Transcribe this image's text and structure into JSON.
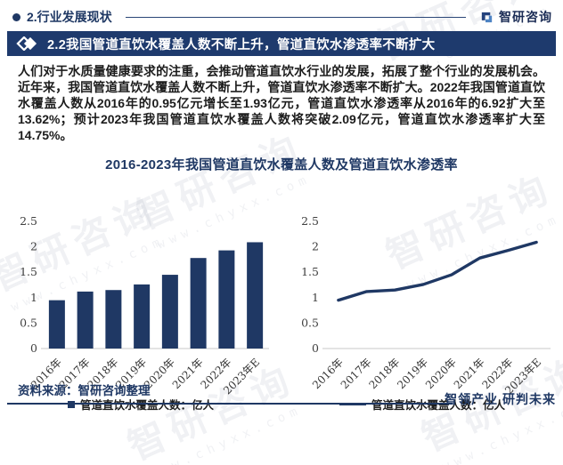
{
  "header": {
    "section": "2.行业发展现状",
    "brand": "智研咨询"
  },
  "banner": {
    "title": "2.2我国管道直饮水覆盖人数不断上升，管道直饮水渗透率不断扩大"
  },
  "body_text": "人们对于水质量健康要求的注重，会推动管道直饮水行业的发展，拓展了整个行业的发展机会。近年来，我国管道直饮水覆盖人数不断上升，管道直饮水渗透率不断扩大。2022年我国管道直饮水覆盖人数从2016年的0.95亿元增长至1.93亿元，管道直饮水渗透率从2016年的6.92扩大至13.62%；预计2023年我国管道直饮水覆盖人数将突破2.09亿元，管道直饮水渗透率扩大至14.75%。",
  "figure": {
    "title": "2016-2023年我国管道直饮水覆盖人数及管道直饮水渗透率"
  },
  "footer": {
    "source": "资料来源：智研咨询整理",
    "slogan": "智领产业 研判未来"
  },
  "watermark": {
    "brand": "智研咨询",
    "url": "www.chyxx.com"
  },
  "colors": {
    "navy": "#1f3864",
    "bar": "#1f3864",
    "line": "#1f3864",
    "baseline": "#c9c9c9",
    "tick_text": "#404040",
    "banner_bg": "#1e3a6d"
  },
  "chart_data": [
    {
      "type": "bar",
      "categories": [
        "2016年",
        "2017年",
        "2018年",
        "2019年",
        "2020年",
        "2021年",
        "2022年",
        "2023年E"
      ],
      "values": [
        0.95,
        1.12,
        1.15,
        1.26,
        1.45,
        1.78,
        1.93,
        2.09
      ],
      "ylim": [
        0,
        2.5
      ],
      "yticks": [
        0,
        0.5,
        1,
        1.5,
        2,
        2.5
      ],
      "grid": false,
      "legend": {
        "label": "管道直饮水覆盖人数：亿人",
        "marker": "square",
        "position": "bottom"
      }
    },
    {
      "type": "line",
      "categories": [
        "2016年",
        "2017年",
        "2018年",
        "2019年",
        "2020年",
        "2021年",
        "2022年",
        "2023年E"
      ],
      "values": [
        0.95,
        1.12,
        1.15,
        1.26,
        1.45,
        1.78,
        1.93,
        2.09
      ],
      "ylim": [
        0,
        2.5
      ],
      "yticks": [
        0,
        0.5,
        1,
        1.5,
        2,
        2.5
      ],
      "grid": false,
      "legend": {
        "label": "管道直饮水覆盖人数：亿人",
        "marker": "line",
        "position": "bottom"
      }
    }
  ]
}
